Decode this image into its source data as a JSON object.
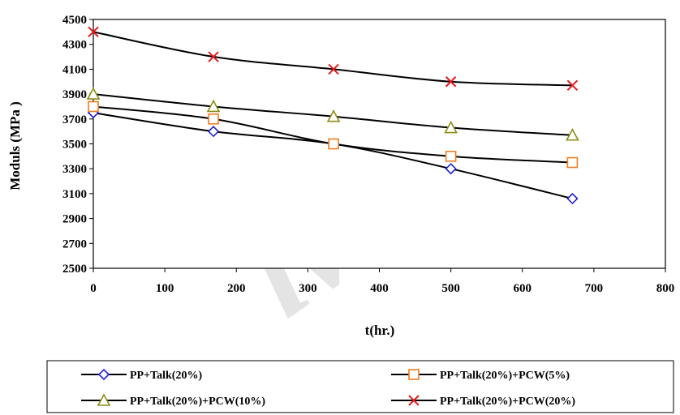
{
  "chart_data": {
    "type": "line",
    "title": "",
    "xlabel": "t(hr.)",
    "ylabel": "Moduls (MPa )",
    "xlim": [
      0,
      800
    ],
    "ylim": [
      2500,
      4500
    ],
    "x_ticks": [
      0,
      100,
      200,
      300,
      400,
      500,
      600,
      700,
      800
    ],
    "y_ticks": [
      2500,
      2700,
      2900,
      3100,
      3300,
      3500,
      3700,
      3900,
      4100,
      4300,
      4500
    ],
    "x_tick_labels": [
      "0",
      "100",
      "200",
      "300",
      "400",
      "500",
      "600",
      "700",
      "800"
    ],
    "y_tick_labels": [
      "2500",
      "2700",
      "2900",
      "3100",
      "3300",
      "3500",
      "3700",
      "3900",
      "4100",
      "4300",
      "4500"
    ],
    "grid": false,
    "legend_position": "bottom",
    "series": [
      {
        "name": "PP+Talk(20%)",
        "marker": "diamond",
        "marker_color": "#1f1fd1",
        "line_color": "#000000",
        "x": [
          0,
          168,
          336,
          500,
          670
        ],
        "y": [
          3750,
          3600,
          3500,
          3300,
          3060
        ]
      },
      {
        "name": "PP+Talk(20%)+PCW(5%)",
        "marker": "square",
        "marker_color": "#f47b20",
        "line_color": "#000000",
        "x": [
          0,
          168,
          336,
          500,
          670
        ],
        "y": [
          3800,
          3700,
          3500,
          3400,
          3350
        ]
      },
      {
        "name": "PP+Talk(20%)+PCW(10%)",
        "marker": "triangle",
        "marker_color": "#8c8c14",
        "line_color": "#000000",
        "x": [
          0,
          168,
          336,
          500,
          670
        ],
        "y": [
          3900,
          3800,
          3720,
          3630,
          3570
        ]
      },
      {
        "name": "PP+Talk(20%)+PCW(20%)",
        "marker": "x",
        "marker_color": "#e41a1c",
        "line_color": "#000000",
        "x": [
          0,
          168,
          336,
          500,
          670
        ],
        "y": [
          4400,
          4200,
          4100,
          4000,
          3970
        ]
      }
    ]
  },
  "watermark": {
    "text": "iveo"
  }
}
